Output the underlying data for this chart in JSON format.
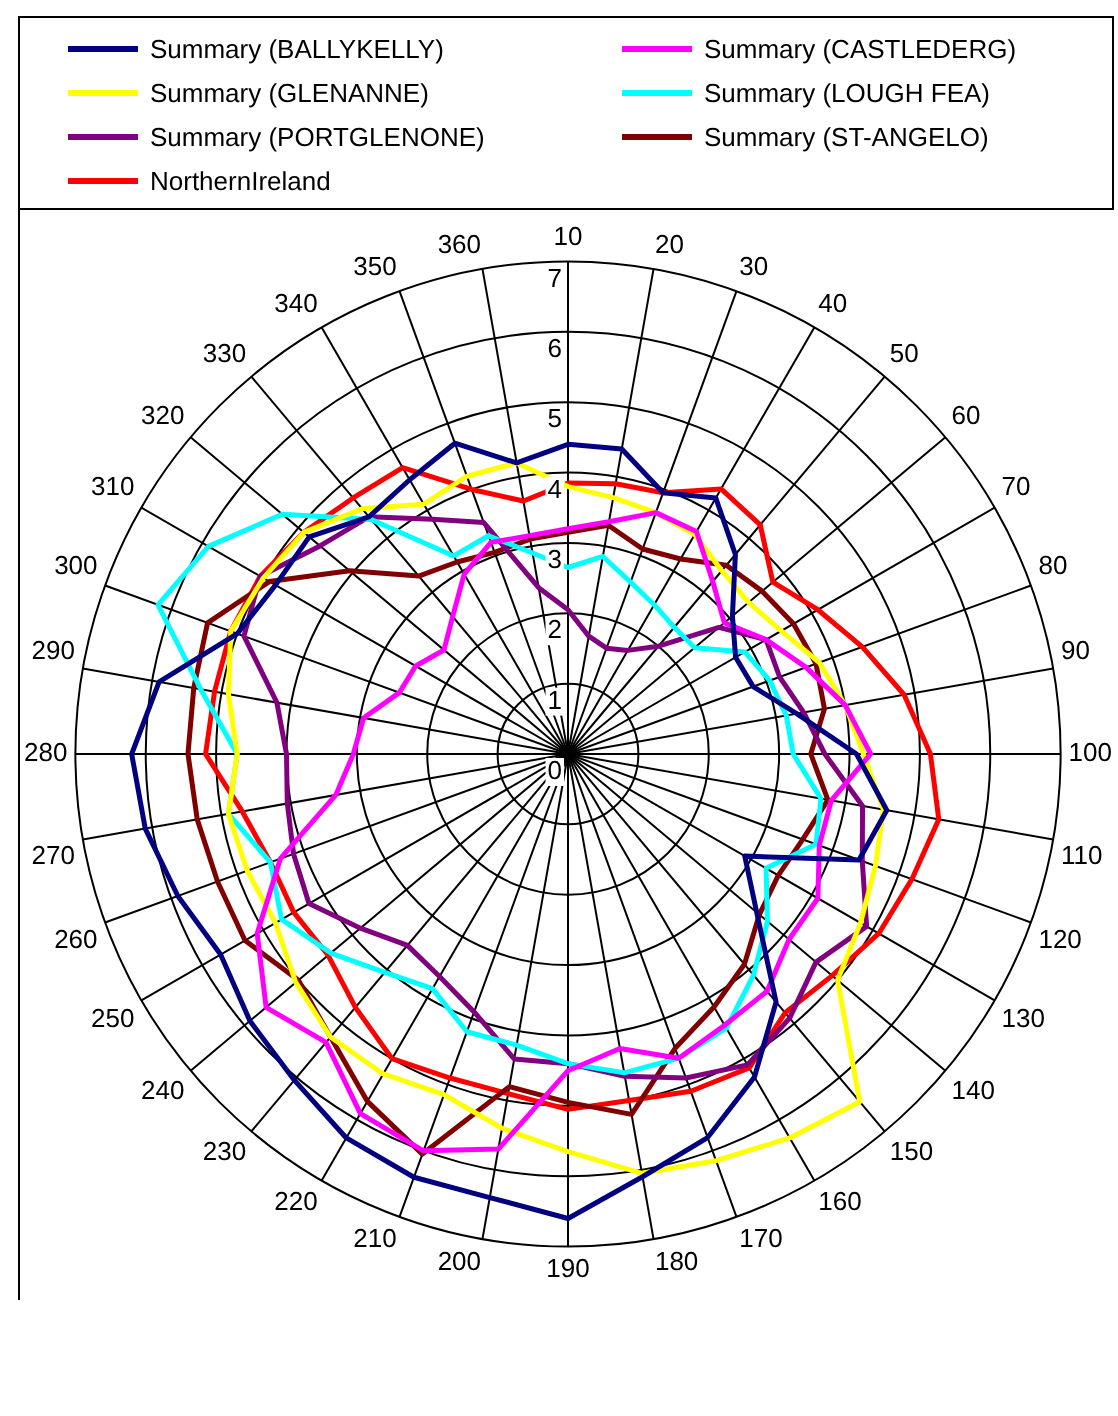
{
  "chart_data": {
    "type": "radar",
    "categories": [
      "10",
      "20",
      "30",
      "40",
      "50",
      "60",
      "70",
      "80",
      "90",
      "100",
      "110",
      "120",
      "130",
      "140",
      "150",
      "160",
      "170",
      "180",
      "190",
      "200",
      "210",
      "220",
      "230",
      "240",
      "250",
      "260",
      "270",
      "280",
      "290",
      "300",
      "310",
      "320",
      "330",
      "340",
      "350",
      "360"
    ],
    "ylim": [
      0,
      7
    ],
    "yticks": [
      0,
      1,
      2,
      3,
      4,
      5,
      6,
      7
    ],
    "grid": true,
    "legend": "top",
    "marker": "none",
    "series": [
      {
        "name": "Summary (BALLYKELLY)",
        "color": "#000080",
        "values": [
          4.4,
          4.4,
          3.95,
          4.2,
          3.7,
          3.05,
          2.75,
          2.8,
          3.3,
          4.1,
          4.6,
          4.4,
          2.9,
          3.5,
          4.6,
          5.3,
          5.8,
          6.1,
          6.6,
          6.4,
          6.4,
          6.3,
          6.05,
          5.9,
          5.7,
          5.9,
          6.1,
          6.2,
          5.9,
          5.0,
          4.8,
          4.8,
          4.4,
          4.5,
          4.7,
          4.2
        ]
      },
      {
        "name": "Summary (CASTLEDERG)",
        "color": "#ff00ff",
        "values": [
          3.2,
          3.35,
          3.65,
          3.65,
          3.2,
          2.9,
          3.25,
          3.6,
          4.0,
          4.3,
          3.8,
          3.8,
          4.1,
          4.1,
          4.4,
          4.45,
          4.6,
          4.25,
          4.5,
          5.7,
          6.0,
          5.9,
          5.35,
          5.6,
          5.1,
          4.35,
          3.35,
          3.05,
          2.95,
          2.55,
          2.5,
          2.3,
          2.55,
          2.95,
          3.2,
          3.15
        ]
      },
      {
        "name": "Summary (GLENANNE)",
        "color": "#ffff00",
        "values": [
          3.8,
          3.7,
          3.65,
          3.6,
          3.4,
          3.35,
          3.5,
          3.8,
          4.0,
          4.2,
          4.55,
          4.65,
          4.8,
          5.0,
          6.45,
          6.3,
          6.15,
          6.05,
          5.65,
          5.4,
          5.15,
          5.25,
          5.25,
          5.05,
          4.8,
          4.85,
          4.9,
          4.7,
          4.9,
          5.1,
          5.0,
          4.9,
          4.55,
          4.1,
          4.2,
          4.2
        ]
      },
      {
        "name": "Summary (LOUGH FEA)",
        "color": "#00ffff",
        "values": [
          2.65,
          2.85,
          2.6,
          2.45,
          2.35,
          2.35,
          2.9,
          3.05,
          3.15,
          3.2,
          3.65,
          3.75,
          3.25,
          3.7,
          4.1,
          4.5,
          4.6,
          4.6,
          4.4,
          4.2,
          4.2,
          3.85,
          4.05,
          4.4,
          4.7,
          4.5,
          4.9,
          4.7,
          5.3,
          6.2,
          5.9,
          5.3,
          4.35,
          3.25,
          3.3,
          2.9
        ]
      },
      {
        "name": "Summary (PORTGLENONE)",
        "color": "#800080",
        "values": [
          2.05,
          1.7,
          1.6,
          1.7,
          2.0,
          2.8,
          3.25,
          3.2,
          3.4,
          3.65,
          4.25,
          4.45,
          4.9,
          4.6,
          4.9,
          5.1,
          4.9,
          4.65,
          4.4,
          4.4,
          3.9,
          3.65,
          3.55,
          3.85,
          4.25,
          4.15,
          4.05,
          4.0,
          4.2,
          4.9,
          5.05,
          4.6,
          4.4,
          3.85,
          3.5,
          2.4
        ]
      },
      {
        "name": "Summary (ST-ANGELO)",
        "color": "#800000",
        "values": [
          3.15,
          3.3,
          3.1,
          3.2,
          3.5,
          3.6,
          3.7,
          3.75,
          3.7,
          3.45,
          3.75,
          3.55,
          3.45,
          3.55,
          3.9,
          4.15,
          4.45,
          5.2,
          4.95,
          4.8,
          6.05,
          5.7,
          5.25,
          5.0,
          5.3,
          5.3,
          5.35,
          5.4,
          5.4,
          5.45,
          4.9,
          4.05,
          3.3,
          3.15,
          3.05,
          3.1
        ]
      },
      {
        "name": "NorthernIreland",
        "color": "#ff0000",
        "values": [
          3.85,
          3.9,
          3.95,
          4.35,
          4.25,
          3.8,
          4.1,
          4.45,
          4.85,
          5.15,
          5.35,
          5.2,
          5.1,
          4.9,
          4.8,
          5.15,
          5.1,
          5.0,
          5.05,
          4.9,
          4.9,
          5.0,
          4.7,
          4.45,
          4.5,
          4.5,
          4.7,
          5.15,
          5.1,
          5.1,
          5.05,
          4.9,
          4.75,
          4.7,
          4.0,
          3.65
        ]
      }
    ]
  }
}
